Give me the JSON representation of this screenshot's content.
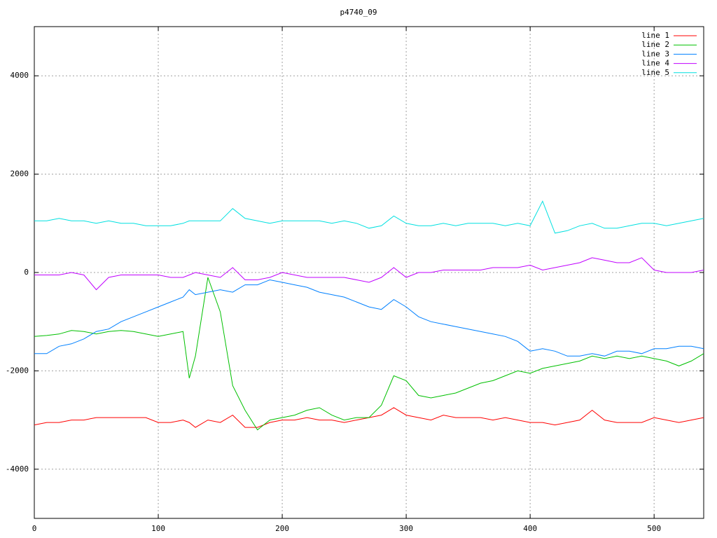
{
  "chart_data": {
    "type": "line",
    "title": "p4740_09",
    "x": [
      0,
      10,
      20,
      30,
      40,
      50,
      60,
      70,
      80,
      90,
      100,
      110,
      120,
      125,
      130,
      140,
      150,
      160,
      170,
      180,
      190,
      200,
      210,
      220,
      230,
      240,
      250,
      260,
      270,
      280,
      290,
      300,
      310,
      320,
      330,
      340,
      350,
      360,
      370,
      380,
      390,
      400,
      410,
      420,
      430,
      440,
      450,
      460,
      470,
      480,
      490,
      500,
      510,
      520,
      530,
      540
    ],
    "series": [
      {
        "name": "line 1",
        "color": "#ff0000",
        "values": [
          -3100,
          -3050,
          -3050,
          -3000,
          -3000,
          -2950,
          -2950,
          -2950,
          -2950,
          -2950,
          -3050,
          -3050,
          -3000,
          -3050,
          -3150,
          -3000,
          -3050,
          -2900,
          -3150,
          -3150,
          -3050,
          -3000,
          -3000,
          -2950,
          -3000,
          -3000,
          -3050,
          -3000,
          -2950,
          -2900,
          -2750,
          -2900,
          -2950,
          -3000,
          -2900,
          -2950,
          -2950,
          -2950,
          -3000,
          -2950,
          -3000,
          -3050,
          -3050,
          -3100,
          -3050,
          -3000,
          -2800,
          -3000,
          -3050,
          -3050,
          -3050,
          -2950,
          -3000,
          -3050,
          -3000,
          -2950
        ]
      },
      {
        "name": "line 2",
        "color": "#00c000",
        "values": [
          -1300,
          -1280,
          -1250,
          -1180,
          -1200,
          -1250,
          -1200,
          -1180,
          -1200,
          -1250,
          -1300,
          -1250,
          -1200,
          -2150,
          -1700,
          -100,
          -800,
          -2300,
          -2800,
          -3200,
          -3000,
          -2950,
          -2900,
          -2800,
          -2750,
          -2900,
          -3000,
          -2950,
          -2950,
          -2700,
          -2100,
          -2200,
          -2500,
          -2550,
          -2500,
          -2450,
          -2350,
          -2250,
          -2200,
          -2100,
          -2000,
          -2050,
          -1950,
          -1900,
          -1850,
          -1800,
          -1700,
          -1750,
          -1700,
          -1750,
          -1700,
          -1750,
          -1800,
          -1900,
          -1800,
          -1650
        ]
      },
      {
        "name": "line 3",
        "color": "#0080ff",
        "values": [
          -1650,
          -1650,
          -1500,
          -1450,
          -1350,
          -1200,
          -1150,
          -1000,
          -900,
          -800,
          -700,
          -600,
          -500,
          -350,
          -450,
          -400,
          -350,
          -400,
          -250,
          -250,
          -150,
          -200,
          -250,
          -300,
          -400,
          -450,
          -500,
          -600,
          -700,
          -750,
          -550,
          -700,
          -900,
          -1000,
          -1050,
          -1100,
          -1150,
          -1200,
          -1250,
          -1300,
          -1400,
          -1600,
          -1550,
          -1600,
          -1700,
          -1700,
          -1650,
          -1700,
          -1600,
          -1600,
          -1650,
          -1550,
          -1550,
          -1500,
          -1500,
          -1550
        ]
      },
      {
        "name": "line 4",
        "color": "#c000ff",
        "values": [
          -50,
          -50,
          -50,
          0,
          -50,
          -350,
          -100,
          -50,
          -50,
          -50,
          -50,
          -100,
          -100,
          -50,
          0,
          -50,
          -100,
          100,
          -150,
          -150,
          -100,
          0,
          -50,
          -100,
          -100,
          -100,
          -100,
          -150,
          -200,
          -100,
          100,
          -100,
          0,
          0,
          50,
          50,
          50,
          50,
          100,
          100,
          100,
          150,
          50,
          100,
          150,
          200,
          300,
          250,
          200,
          200,
          300,
          50,
          0,
          0,
          0,
          50
        ]
      },
      {
        "name": "line 5",
        "color": "#00e0e0",
        "values": [
          1050,
          1050,
          1100,
          1050,
          1050,
          1000,
          1050,
          1000,
          1000,
          950,
          950,
          950,
          1000,
          1050,
          1050,
          1050,
          1050,
          1300,
          1100,
          1050,
          1000,
          1050,
          1050,
          1050,
          1050,
          1000,
          1050,
          1000,
          900,
          950,
          1150,
          1000,
          950,
          950,
          1000,
          950,
          1000,
          1000,
          1000,
          950,
          1000,
          950,
          1450,
          800,
          850,
          950,
          1000,
          900,
          900,
          950,
          1000,
          1000,
          950,
          1000,
          1050,
          1100
        ]
      }
    ],
    "xlim": [
      0,
      540
    ],
    "xticks": [
      0,
      100,
      200,
      300,
      400,
      500
    ],
    "ylim": [
      -5000,
      5000
    ],
    "yticks": [
      -4000,
      -2000,
      0,
      2000,
      4000
    ],
    "grid": true,
    "legend": "top-right"
  }
}
